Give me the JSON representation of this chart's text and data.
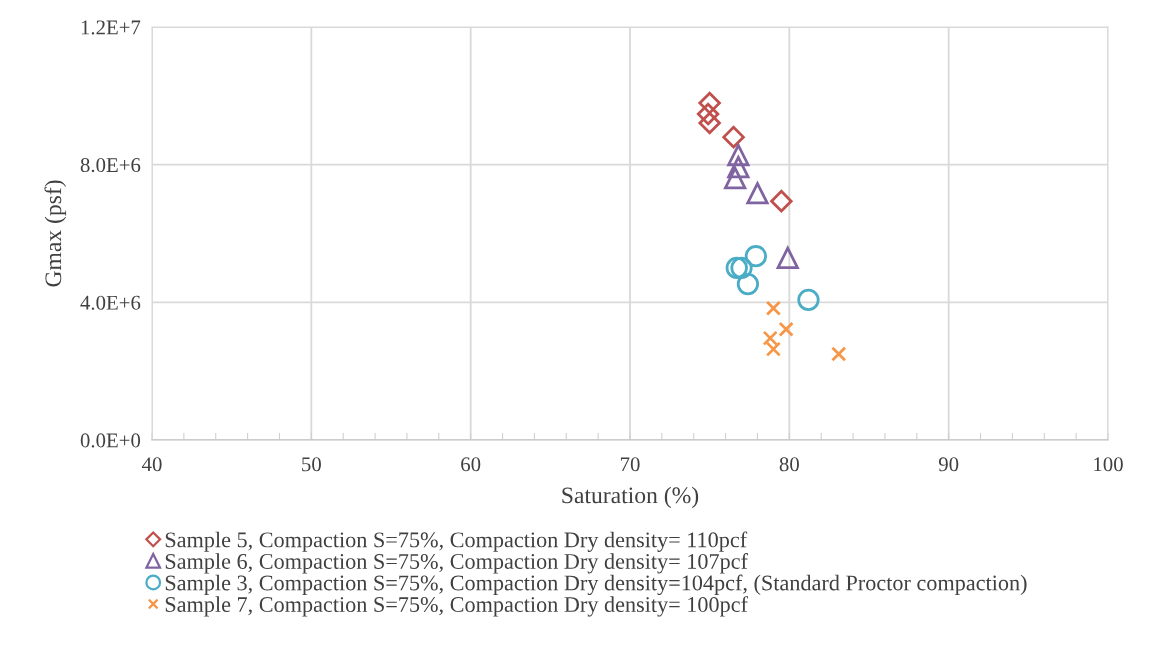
{
  "chart_data": {
    "type": "scatter",
    "xlabel": "Saturation (%)",
    "ylabel": "Gmax (psf)",
    "xlim": [
      40,
      100
    ],
    "ylim": [
      0,
      12000000
    ],
    "xticks": [
      40,
      {
        "value": 42,
        "label": null
      },
      {
        "value": 44,
        "label": null
      },
      {
        "value": 46,
        "label": null
      },
      {
        "value": 48,
        "label": null
      },
      50,
      {
        "value": 52,
        "label": null
      },
      {
        "value": 54,
        "label": null
      },
      {
        "value": 56,
        "label": null
      },
      {
        "value": 58,
        "label": null
      },
      60,
      {
        "value": 62,
        "label": null
      },
      {
        "value": 64,
        "label": null
      },
      {
        "value": 66,
        "label": null
      },
      {
        "value": 68,
        "label": null
      },
      70,
      {
        "value": 72,
        "label": null
      },
      {
        "value": 74,
        "label": null
      },
      {
        "value": 76,
        "label": null
      },
      {
        "value": 78,
        "label": null
      },
      80,
      {
        "value": 82,
        "label": null
      },
      {
        "value": 84,
        "label": null
      },
      {
        "value": 86,
        "label": null
      },
      {
        "value": 88,
        "label": null
      },
      90,
      {
        "value": 92,
        "label": null
      },
      {
        "value": 94,
        "label": null
      },
      {
        "value": 96,
        "label": null
      },
      {
        "value": 98,
        "label": null
      },
      100
    ],
    "yticks": [
      {
        "value": 0,
        "label": "0.0E+0"
      },
      {
        "value": 4000000,
        "label": "4.0E+6"
      },
      {
        "value": 8000000,
        "label": "8.0E+6"
      },
      {
        "value": 12000000,
        "label": "1.2E+7"
      }
    ],
    "grid": true,
    "legend": "bottom left",
    "series": [
      {
        "name": "Sample 5, Compaction S=75%, Compaction Dry density= 110pcf",
        "color": "#c0504d",
        "marker": "diamond",
        "x": [
          75.0,
          74.9,
          75.0,
          76.5,
          79.5
        ],
        "values": [
          9790000,
          9470000,
          9210000,
          8800000,
          6940000
        ]
      },
      {
        "name": "Sample 6, Compaction S=75%, Compaction Dry density= 107pcf",
        "color": "#8064a2",
        "marker": "triangle",
        "x": [
          76.8,
          76.8,
          76.6,
          78.0,
          79.9
        ],
        "values": [
          8280000,
          7930000,
          7610000,
          7170000,
          5290000
        ]
      },
      {
        "name": "Sample 3, Compaction S=75%, Compaction Dry density=104pcf, (Standard Proctor compaction)",
        "color": "#4bacc6",
        "marker": "circle",
        "x": [
          77.9,
          76.7,
          77.0,
          77.4,
          81.2
        ],
        "values": [
          5340000,
          5000000,
          5000000,
          4530000,
          4070000
        ]
      },
      {
        "name": "Sample 7, Compaction S=75%, Compaction Dry density= 100pcf",
        "color": "#f79646",
        "marker": "cross",
        "x": [
          79.0,
          79.8,
          78.8,
          79.0,
          83.1
        ],
        "values": [
          3830000,
          3220000,
          2960000,
          2640000,
          2500000
        ]
      }
    ]
  }
}
